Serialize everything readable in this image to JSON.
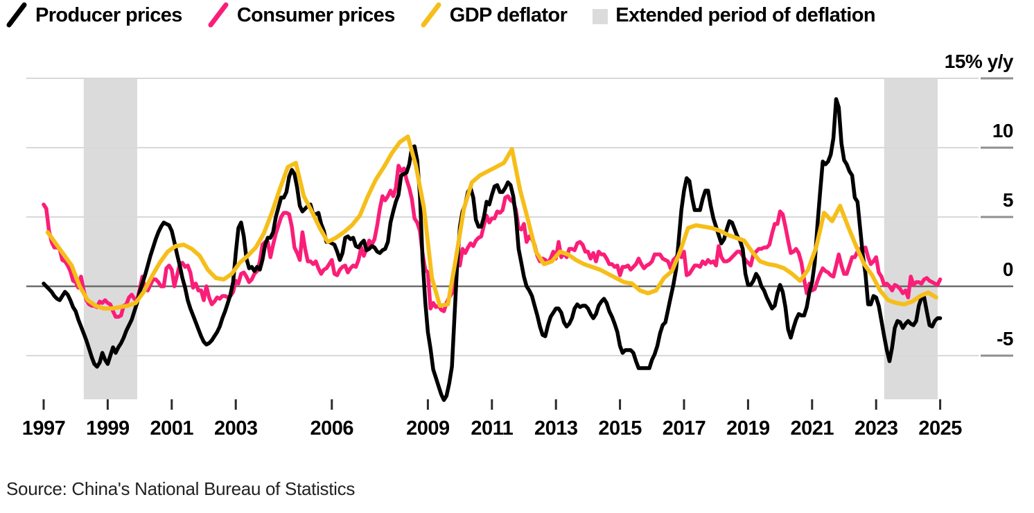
{
  "legend": {
    "items": [
      {
        "label": "Producer prices",
        "color": "#000000",
        "swatch": "slash"
      },
      {
        "label": "Consumer prices",
        "color": "#fa1e78",
        "swatch": "slash"
      },
      {
        "label": "GDP deflator",
        "color": "#f6be1a",
        "swatch": "slash"
      },
      {
        "label": "Extended period of deflation",
        "color": "#dbdbdb",
        "swatch": "square"
      }
    ]
  },
  "source": "Source: China's National Bureau of Statistics",
  "chart_data": {
    "type": "line",
    "title": "",
    "xlabel": "",
    "ylabel": "% y/y",
    "unit_label": "15% y/y",
    "x_range": [
      1997,
      2025.1
    ],
    "ylim": [
      -8.5,
      15
    ],
    "grid": true,
    "legend_position": "top",
    "band_color": "#dbdbdb",
    "grid_color": "#d8d8d8",
    "grid_stub_color": "#8f8f8f",
    "zero_line_color": "#6b6b6b",
    "tick_color": "#2b2b2b",
    "yticks": [
      {
        "value": 15,
        "label": "15% y/y"
      },
      {
        "value": 10,
        "label": "10"
      },
      {
        "value": 5,
        "label": "5"
      },
      {
        "value": 0,
        "label": "0"
      },
      {
        "value": -5,
        "label": "-5"
      }
    ],
    "xticks": [
      1997,
      1999,
      2001,
      2003,
      2006,
      2009,
      2011,
      2013,
      2015,
      2017,
      2019,
      2021,
      2023,
      2025
    ],
    "bands": [
      {
        "name": "deflation-1998-1999",
        "from": 1998.25,
        "to": 1999.92
      },
      {
        "name": "deflation-2023-2024",
        "from": 2023.25,
        "to": 2024.92
      }
    ],
    "series": [
      {
        "name": "Consumer prices",
        "color": "#fa1e78",
        "freq": "monthly",
        "start_year": 1997,
        "z": 1,
        "values": [
          5.9,
          5.6,
          4.0,
          3.2,
          2.8,
          2.8,
          2.7,
          1.9,
          1.8,
          1.5,
          1.1,
          0.4,
          0.3,
          -0.1,
          0.7,
          -0.3,
          -1.0,
          -1.3,
          -1.4,
          -1.4,
          -1.5,
          -1.1,
          -1.2,
          -1.0,
          -1.2,
          -1.3,
          -1.8,
          -2.2,
          -2.2,
          -2.1,
          -1.4,
          -1.3,
          -0.8,
          -0.6,
          -0.9,
          -1.0,
          -0.2,
          0.7,
          -0.2,
          -0.3,
          0.1,
          0.5,
          0.5,
          0.3,
          0.0,
          0.0,
          1.3,
          1.5,
          1.2,
          0.0,
          0.8,
          1.6,
          1.7,
          1.4,
          1.5,
          1.0,
          -0.1,
          0.2,
          -0.3,
          -0.3,
          -1.0,
          0.0,
          -0.8,
          -1.3,
          -1.1,
          -0.8,
          -0.9,
          -0.7,
          -0.7,
          -0.8,
          -0.7,
          -0.4,
          0.4,
          0.2,
          0.9,
          1.0,
          0.7,
          0.3,
          0.5,
          0.9,
          1.1,
          1.8,
          3.0,
          3.2,
          3.2,
          2.1,
          3.0,
          3.8,
          4.4,
          5.0,
          5.3,
          5.3,
          5.2,
          4.3,
          2.8,
          2.4,
          1.9,
          3.9,
          2.7,
          1.8,
          1.8,
          1.6,
          1.8,
          1.3,
          0.9,
          1.2,
          1.3,
          1.6,
          1.9,
          0.9,
          0.8,
          1.2,
          1.4,
          1.5,
          1.0,
          1.3,
          1.5,
          1.4,
          1.9,
          2.8,
          2.2,
          2.7,
          3.3,
          3.0,
          3.4,
          4.4,
          5.6,
          6.5,
          6.2,
          6.5,
          6.9,
          6.5,
          7.1,
          8.7,
          8.3,
          8.5,
          7.7,
          7.1,
          6.3,
          4.9,
          4.6,
          4.0,
          2.4,
          1.2,
          1.0,
          -1.6,
          -1.2,
          -1.5,
          -1.4,
          -1.7,
          -1.8,
          -1.2,
          -0.8,
          -0.5,
          0.6,
          1.9,
          1.5,
          2.7,
          2.4,
          2.8,
          3.1,
          2.9,
          3.3,
          3.5,
          3.6,
          4.4,
          5.1,
          4.6,
          4.9,
          4.9,
          5.4,
          5.3,
          5.5,
          6.4,
          6.5,
          6.2,
          6.1,
          5.5,
          4.2,
          4.1,
          4.5,
          3.2,
          3.6,
          3.4,
          3.0,
          2.2,
          1.8,
          2.0,
          1.9,
          1.7,
          2.0,
          2.5,
          2.0,
          3.2,
          2.1,
          2.4,
          2.1,
          2.7,
          2.7,
          2.6,
          3.1,
          3.2,
          3.0,
          2.5,
          2.5,
          2.0,
          2.4,
          1.8,
          2.5,
          2.3,
          2.3,
          2.0,
          1.6,
          1.6,
          1.4,
          1.5,
          0.8,
          1.4,
          1.4,
          1.5,
          1.2,
          1.4,
          1.6,
          2.0,
          1.6,
          1.3,
          1.5,
          1.6,
          1.8,
          2.3,
          2.3,
          2.3,
          2.0,
          1.9,
          1.8,
          1.3,
          1.9,
          2.1,
          2.3,
          2.1,
          2.5,
          0.8,
          0.9,
          1.2,
          1.5,
          1.5,
          1.4,
          1.8,
          1.6,
          1.9,
          1.7,
          1.8,
          1.5,
          2.9,
          2.1,
          1.8,
          1.8,
          1.9,
          2.1,
          2.3,
          2.5,
          2.5,
          2.2,
          1.9,
          1.7,
          1.5,
          2.3,
          2.5,
          2.7,
          2.7,
          2.8,
          2.8,
          3.0,
          3.8,
          4.5,
          4.5,
          5.4,
          5.2,
          4.3,
          3.3,
          2.4,
          2.5,
          2.7,
          2.4,
          1.7,
          0.5,
          -0.5,
          0.2,
          -0.3,
          -0.2,
          0.4,
          0.9,
          1.3,
          1.1,
          1.0,
          0.8,
          0.7,
          1.5,
          2.3,
          1.5,
          0.9,
          0.9,
          1.5,
          2.1,
          2.1,
          2.5,
          2.7,
          2.5,
          2.8,
          2.1,
          1.6,
          1.8,
          2.1,
          1.0,
          0.7,
          0.1,
          0.2,
          0.0,
          -0.3,
          0.1,
          0.0,
          -0.2,
          -0.5,
          -0.3,
          -0.8,
          0.7,
          0.1,
          0.3,
          0.3,
          0.2,
          0.5,
          0.6,
          0.4,
          0.3,
          0.2,
          0.1,
          0.5
        ]
      },
      {
        "name": "Producer prices",
        "color": "#000000",
        "freq": "monthly",
        "start_year": 1997,
        "z": 2,
        "values": [
          0.2,
          0.0,
          -0.2,
          -0.4,
          -0.7,
          -0.9,
          -1.0,
          -0.7,
          -0.4,
          -0.6,
          -1.0,
          -1.5,
          -1.8,
          -2.4,
          -2.9,
          -3.4,
          -3.9,
          -4.5,
          -5.1,
          -5.6,
          -5.8,
          -5.5,
          -4.8,
          -5.3,
          -5.6,
          -5.0,
          -4.4,
          -4.8,
          -4.4,
          -4.1,
          -3.7,
          -3.2,
          -2.8,
          -2.4,
          -1.8,
          -1.2,
          -0.4,
          0.2,
          0.8,
          1.5,
          2.2,
          2.8,
          3.4,
          3.9,
          4.3,
          4.6,
          4.5,
          4.4,
          4.0,
          3.2,
          2.3,
          1.5,
          0.6,
          -0.1,
          -1.0,
          -1.6,
          -2.1,
          -2.6,
          -3.1,
          -3.6,
          -4.0,
          -4.2,
          -4.1,
          -3.9,
          -3.6,
          -3.3,
          -2.9,
          -2.3,
          -1.8,
          -1.2,
          -0.6,
          0.3,
          2.4,
          4.2,
          4.6,
          3.6,
          2.0,
          1.3,
          1.4,
          1.1,
          1.4,
          1.2,
          1.9,
          3.0,
          3.5,
          3.5,
          3.9,
          5.0,
          5.7,
          6.4,
          6.4,
          6.8,
          7.9,
          8.4,
          8.1,
          7.1,
          5.8,
          5.4,
          5.6,
          5.8,
          5.9,
          5.2,
          5.2,
          5.3,
          4.5,
          4.0,
          3.2,
          3.2,
          3.1,
          3.0,
          2.5,
          1.9,
          2.4,
          3.5,
          3.6,
          3.4,
          3.5,
          2.9,
          2.8,
          3.1,
          3.3,
          2.6,
          2.7,
          2.9,
          2.8,
          2.5,
          2.4,
          2.6,
          2.7,
          3.2,
          4.6,
          5.4,
          6.1,
          6.6,
          8.0,
          8.1,
          8.2,
          8.8,
          10.0,
          10.1,
          9.1,
          6.6,
          2.0,
          -1.1,
          -3.3,
          -4.5,
          -6.0,
          -6.6,
          -7.2,
          -7.8,
          -8.2,
          -7.9,
          -7.0,
          -5.8,
          -2.1,
          1.7,
          4.3,
          5.4,
          5.9,
          6.8,
          7.1,
          6.4,
          4.8,
          4.3,
          4.3,
          5.0,
          6.1,
          5.9,
          6.6,
          7.2,
          7.3,
          6.8,
          6.8,
          7.1,
          7.5,
          7.3,
          6.5,
          5.0,
          2.7,
          1.7,
          0.7,
          0.0,
          -0.3,
          -0.7,
          -1.4,
          -2.1,
          -2.9,
          -3.5,
          -3.6,
          -2.8,
          -2.2,
          -1.9,
          -1.6,
          -1.6,
          -1.9,
          -2.6,
          -2.9,
          -2.7,
          -2.3,
          -1.6,
          -1.3,
          -1.5,
          -1.4,
          -1.4,
          -1.6,
          -2.0,
          -2.3,
          -2.0,
          -1.4,
          -1.1,
          -0.9,
          -1.2,
          -1.8,
          -2.2,
          -2.7,
          -3.3,
          -4.3,
          -4.8,
          -4.6,
          -4.6,
          -4.6,
          -4.8,
          -5.4,
          -5.9,
          -5.9,
          -5.9,
          -5.9,
          -5.9,
          -5.3,
          -4.9,
          -4.3,
          -3.4,
          -2.8,
          -2.6,
          -1.7,
          -0.8,
          0.1,
          1.2,
          3.3,
          5.5,
          6.9,
          7.8,
          7.6,
          6.4,
          5.5,
          5.5,
          5.5,
          6.3,
          6.9,
          6.9,
          5.8,
          4.9,
          4.3,
          3.7,
          3.1,
          3.4,
          4.1,
          4.7,
          4.6,
          4.1,
          3.6,
          3.3,
          2.7,
          0.9,
          0.1,
          0.1,
          0.4,
          0.9,
          0.6,
          0.0,
          -0.3,
          -0.8,
          -1.2,
          -1.6,
          -1.4,
          -0.5,
          0.1,
          -0.4,
          -1.5,
          -3.1,
          -3.7,
          -3.0,
          -2.4,
          -2.0,
          -2.1,
          -2.1,
          -1.5,
          -0.4,
          0.3,
          1.7,
          4.4,
          6.8,
          9.0,
          8.8,
          9.0,
          9.5,
          10.7,
          13.5,
          12.9,
          10.3,
          9.1,
          8.8,
          8.3,
          8.0,
          6.4,
          6.1,
          4.2,
          2.3,
          0.9,
          -1.3,
          -1.3,
          -0.7,
          -0.8,
          -1.4,
          -2.5,
          -3.6,
          -4.6,
          -5.4,
          -4.4,
          -3.0,
          -2.5,
          -2.6,
          -3.0,
          -2.7,
          -2.5,
          -2.7,
          -2.8,
          -2.5,
          -1.4,
          -0.8,
          -0.8,
          -1.8,
          -2.8,
          -2.9,
          -2.5,
          -2.3,
          -2.3
        ]
      },
      {
        "name": "GDP deflator",
        "color": "#f6be1a",
        "freq": "quarterly",
        "start_year": 1997,
        "z": 3,
        "values": [
          3.9,
          3.1,
          2.3,
          1.5,
          0.0,
          -1.0,
          -1.4,
          -1.6,
          -1.6,
          -1.5,
          -1.4,
          -1.2,
          -0.4,
          0.7,
          1.7,
          2.5,
          2.9,
          3.0,
          2.7,
          2.2,
          1.2,
          0.6,
          0.5,
          0.9,
          1.7,
          2.2,
          2.8,
          3.8,
          5.3,
          7.0,
          8.6,
          8.9,
          6.5,
          5.4,
          4.2,
          3.2,
          3.5,
          3.9,
          4.4,
          5.1,
          6.5,
          7.7,
          8.6,
          9.6,
          10.4,
          10.8,
          8.7,
          5.7,
          0.6,
          -1.4,
          -1.3,
          2.0,
          5.6,
          7.5,
          8.0,
          8.3,
          8.6,
          8.9,
          9.9,
          7.0,
          4.8,
          2.5,
          1.6,
          1.8,
          2.5,
          2.3,
          1.9,
          1.6,
          1.4,
          1.2,
          0.9,
          0.6,
          0.3,
          0.2,
          -0.3,
          -0.5,
          -0.3,
          0.6,
          1.1,
          2.5,
          4.2,
          4.4,
          4.3,
          4.2,
          4.0,
          3.7,
          3.5,
          3.3,
          2.5,
          1.8,
          1.6,
          1.5,
          1.3,
          0.9,
          0.4,
          1.2,
          2.8,
          5.3,
          4.7,
          5.8,
          4.3,
          2.9,
          1.6,
          0.8,
          -0.3,
          -1.0,
          -1.2,
          -1.3,
          -1.1,
          -0.7,
          -0.45,
          -0.8
        ]
      }
    ]
  }
}
